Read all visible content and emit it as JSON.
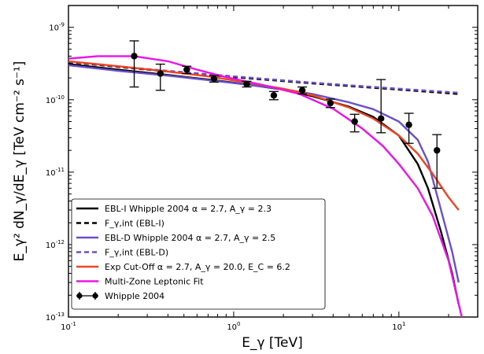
{
  "chart_data": {
    "type": "line",
    "title": "",
    "xlabel": "E_γ [TeV]",
    "ylabel": "E_γ² dN_γ/dE_γ [TeV cm⁻² s⁻¹]",
    "x_scale": "log",
    "y_scale": "log",
    "xlim": [
      0.1,
      30
    ],
    "ylim": [
      1e-13,
      2e-09
    ],
    "x_ticks": [
      {
        "value": 0.1,
        "base": "10",
        "exp": "-1"
      },
      {
        "value": 1,
        "base": "10",
        "exp": "0"
      },
      {
        "value": 10,
        "base": "10",
        "exp": "1"
      }
    ],
    "y_ticks": [
      {
        "value": 1e-13,
        "base": "10",
        "exp": "-13"
      },
      {
        "value": 1e-12,
        "base": "10",
        "exp": "-12"
      },
      {
        "value": 1e-11,
        "base": "10",
        "exp": "-11"
      },
      {
        "value": 1e-10,
        "base": "10",
        "exp": "-10"
      },
      {
        "value": 1e-09,
        "base": "10",
        "exp": "-9"
      }
    ],
    "legend_position": "lower-left",
    "series": [
      {
        "name": "EBL-I Whipple 2004 α = 2.7, A_γ = 2.3",
        "color": "#000000",
        "dash": "solid",
        "kind": "line",
        "x": [
          0.1,
          0.2,
          0.4,
          0.7,
          1.0,
          2.0,
          3.0,
          5.0,
          7.0,
          10.0,
          13.0,
          15.0,
          18.0,
          21.0,
          23.0
        ],
        "y": [
          3.1e-10,
          2.6e-10,
          2.2e-10,
          1.9e-10,
          1.72e-10,
          1.38e-10,
          1.12e-10,
          8e-11,
          5.8e-11,
          3.2e-11,
          1.3e-11,
          6e-12,
          1.5e-12,
          4e-13,
          1.5e-13
        ]
      },
      {
        "name": "F_γ,int (EBL-I)",
        "color": "#000000",
        "dash": "dashed",
        "kind": "line",
        "x": [
          0.1,
          0.3,
          1.0,
          3.0,
          10.0,
          23.0
        ],
        "y": [
          3.3e-10,
          2.6e-10,
          2.05e-10,
          1.68e-10,
          1.38e-10,
          1.2e-10
        ]
      },
      {
        "name": "EBL-D Whipple 2004 α = 2.7, A_γ = 2.5",
        "color": "#6a4fcc",
        "dash": "solid",
        "kind": "line",
        "x": [
          0.1,
          0.2,
          0.4,
          0.7,
          1.0,
          2.0,
          3.0,
          5.0,
          7.0,
          10.0,
          13.0,
          15.0,
          18.0,
          21.0,
          23.0
        ],
        "y": [
          3e-10,
          2.5e-10,
          2.15e-10,
          1.87e-10,
          1.7e-10,
          1.4e-10,
          1.2e-10,
          9.2e-11,
          7.4e-11,
          5e-11,
          2.8e-11,
          1.4e-11,
          3e-12,
          8e-13,
          3e-13
        ]
      },
      {
        "name": "F_γ,int (EBL-D)",
        "color": "#6a4fcc",
        "dash": "dashed",
        "kind": "line",
        "x": [
          0.1,
          0.3,
          1.0,
          3.0,
          10.0,
          23.0
        ],
        "y": [
          3.35e-10,
          2.65e-10,
          2.1e-10,
          1.72e-10,
          1.42e-10,
          1.25e-10
        ]
      },
      {
        "name": "Exp Cut-Off α = 2.7, A_γ = 20.0, E_C = 6.2",
        "color": "#ee4422",
        "dash": "solid",
        "kind": "line",
        "x": [
          0.1,
          0.2,
          0.4,
          0.7,
          1.0,
          2.0,
          3.0,
          5.0,
          7.0,
          10.0,
          13.0,
          16.0,
          20.0,
          23.0
        ],
        "y": [
          3.4e-10,
          2.9e-10,
          2.45e-10,
          2.1e-10,
          1.85e-10,
          1.42e-10,
          1.15e-10,
          7.8e-11,
          5.5e-11,
          3.2e-11,
          1.8e-11,
          9.5e-12,
          4.5e-12,
          3e-12
        ]
      },
      {
        "name": "Multi-Zone Leptonic Fit",
        "color": "#ee11ee",
        "dash": "solid",
        "kind": "line",
        "x": [
          0.1,
          0.15,
          0.25,
          0.4,
          0.6,
          0.9,
          1.5,
          2.5,
          4.0,
          6.0,
          8.0,
          10.0,
          13.0,
          16.0,
          20.0,
          24.0
        ],
        "y": [
          3.7e-10,
          4e-10,
          4e-10,
          3.4e-10,
          2.6e-10,
          2.05e-10,
          1.6e-10,
          1.2e-10,
          7.5e-11,
          4e-11,
          2.3e-11,
          1.3e-11,
          6e-12,
          2.5e-12,
          6e-13,
          1e-13
        ]
      },
      {
        "name": "Whipple 2004",
        "color": "#000000",
        "dash": "solid",
        "kind": "errorbar",
        "points": [
          {
            "x": 0.25,
            "y": 4e-10,
            "ylo": 1.5e-10,
            "yhi": 6.5e-10
          },
          {
            "x": 0.36,
            "y": 2.3e-10,
            "ylo": 1.35e-10,
            "yhi": 3.1e-10
          },
          {
            "x": 0.52,
            "y": 2.6e-10,
            "ylo": 2.3e-10,
            "yhi": 2.9e-10
          },
          {
            "x": 0.76,
            "y": 1.95e-10,
            "ylo": 1.75e-10,
            "yhi": 2.15e-10
          },
          {
            "x": 1.2,
            "y": 1.65e-10,
            "ylo": 1.5e-10,
            "yhi": 1.8e-10
          },
          {
            "x": 1.75,
            "y": 1.15e-10,
            "ylo": 1e-10,
            "yhi": 1.3e-10
          },
          {
            "x": 2.6,
            "y": 1.35e-10,
            "ylo": 1.2e-10,
            "yhi": 1.5e-10
          },
          {
            "x": 3.85,
            "y": 9e-11,
            "ylo": 7.8e-11,
            "yhi": 1.02e-10
          },
          {
            "x": 5.4,
            "y": 5e-11,
            "ylo": 3.6e-11,
            "yhi": 6.3e-11
          },
          {
            "x": 7.8,
            "y": 5.5e-11,
            "ylo": 3.5e-11,
            "yhi": 1.9e-10
          },
          {
            "x": 11.5,
            "y": 4.5e-11,
            "ylo": 2.5e-11,
            "yhi": 6.5e-11
          },
          {
            "x": 17.0,
            "y": 2e-11,
            "ylo": 6e-12,
            "yhi": 3.3e-11
          }
        ]
      }
    ]
  }
}
